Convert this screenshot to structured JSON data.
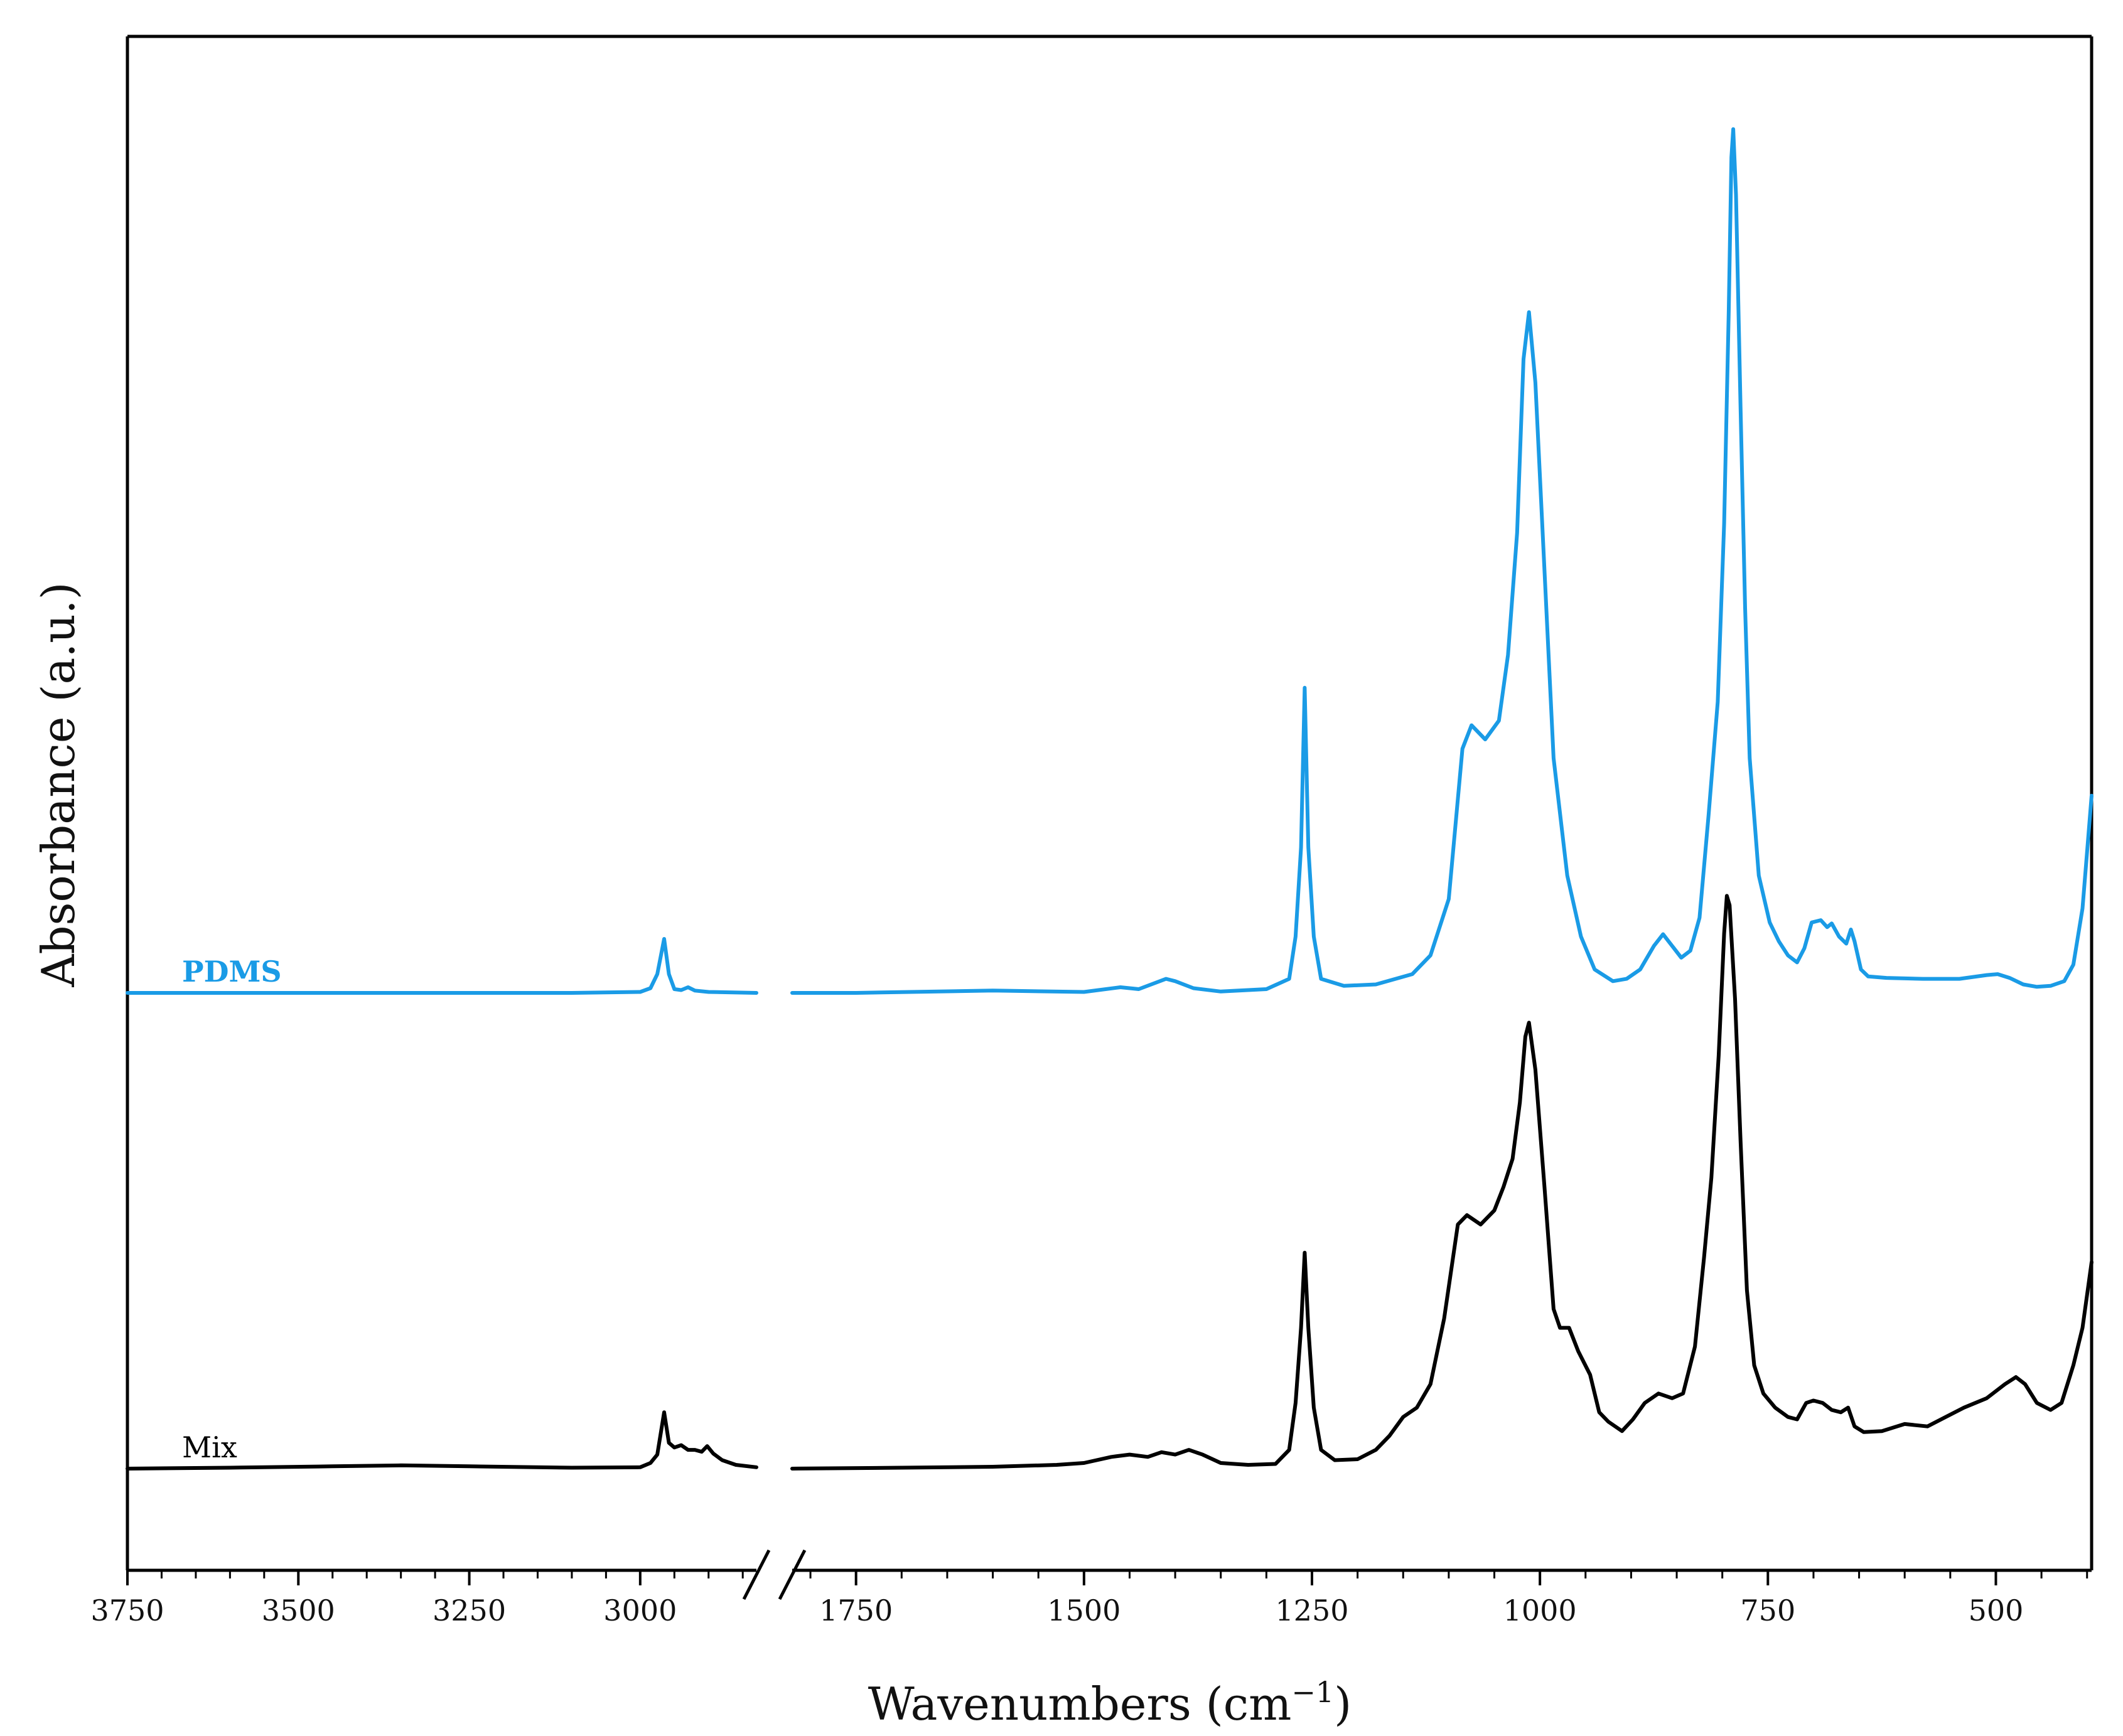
{
  "chart_data": {
    "type": "line",
    "xlabel": "Wavenumbers (cm",
    "xlabel_sup": "−1",
    "xlabel_close": ")",
    "ylabel": "Absorbance (a.u.)",
    "x_reversed": true,
    "x_axis_break": [
      1820,
      2830
    ],
    "x_segments": [
      [
        3750,
        2830
      ],
      [
        1820,
        395
      ]
    ],
    "yticks_shown": false,
    "grid": false,
    "legend": "none",
    "xticks_left": [
      3750,
      3500,
      3250,
      3000
    ],
    "xticks_right": [
      1750,
      1500,
      1250,
      1000,
      750,
      500
    ],
    "series": [
      {
        "name": "PDMS",
        "color": "#1a9be6",
        "points": [
          [
            3750,
            0.0
          ],
          [
            3500,
            0.0
          ],
          [
            3250,
            0.0
          ],
          [
            3100,
            0.0
          ],
          [
            3000,
            0.002
          ],
          [
            2985,
            0.01
          ],
          [
            2975,
            0.04
          ],
          [
            2965,
            0.115
          ],
          [
            2958,
            0.04
          ],
          [
            2950,
            0.008
          ],
          [
            2940,
            0.006
          ],
          [
            2930,
            0.012
          ],
          [
            2920,
            0.005
          ],
          [
            2900,
            0.002
          ],
          [
            2830,
            0.0
          ],
          [
            1820,
            0.0
          ],
          [
            1750,
            0.0
          ],
          [
            1600,
            0.005
          ],
          [
            1500,
            0.002
          ],
          [
            1460,
            0.012
          ],
          [
            1440,
            0.008
          ],
          [
            1410,
            0.03
          ],
          [
            1400,
            0.025
          ],
          [
            1380,
            0.01
          ],
          [
            1350,
            0.003
          ],
          [
            1300,
            0.008
          ],
          [
            1275,
            0.03
          ],
          [
            1268,
            0.12
          ],
          [
            1262,
            0.31
          ],
          [
            1258,
            0.65
          ],
          [
            1254,
            0.31
          ],
          [
            1248,
            0.12
          ],
          [
            1240,
            0.03
          ],
          [
            1215,
            0.015
          ],
          [
            1180,
            0.018
          ],
          [
            1140,
            0.04
          ],
          [
            1120,
            0.08
          ],
          [
            1100,
            0.2
          ],
          [
            1085,
            0.52
          ],
          [
            1075,
            0.57
          ],
          [
            1060,
            0.54
          ],
          [
            1045,
            0.58
          ],
          [
            1035,
            0.72
          ],
          [
            1025,
            0.98
          ],
          [
            1018,
            1.35
          ],
          [
            1012,
            1.45
          ],
          [
            1005,
            1.3
          ],
          [
            995,
            0.9
          ],
          [
            985,
            0.5
          ],
          [
            970,
            0.25
          ],
          [
            955,
            0.12
          ],
          [
            940,
            0.05
          ],
          [
            920,
            0.025
          ],
          [
            905,
            0.03
          ],
          [
            890,
            0.05
          ],
          [
            875,
            0.1
          ],
          [
            865,
            0.125
          ],
          [
            855,
            0.1
          ],
          [
            845,
            0.075
          ],
          [
            835,
            0.09
          ],
          [
            825,
            0.16
          ],
          [
            815,
            0.38
          ],
          [
            805,
            0.62
          ],
          [
            798,
            1.0
          ],
          [
            793,
            1.45
          ],
          [
            790,
            1.78
          ],
          [
            788,
            1.84
          ],
          [
            785,
            1.7
          ],
          [
            780,
            1.25
          ],
          [
            775,
            0.82
          ],
          [
            770,
            0.5
          ],
          [
            760,
            0.25
          ],
          [
            748,
            0.15
          ],
          [
            738,
            0.11
          ],
          [
            728,
            0.08
          ],
          [
            718,
            0.065
          ],
          [
            710,
            0.095
          ],
          [
            702,
            0.15
          ],
          [
            692,
            0.155
          ],
          [
            685,
            0.14
          ],
          [
            680,
            0.148
          ],
          [
            672,
            0.12
          ],
          [
            664,
            0.105
          ],
          [
            659,
            0.135
          ],
          [
            655,
            0.11
          ],
          [
            648,
            0.05
          ],
          [
            640,
            0.035
          ],
          [
            620,
            0.032
          ],
          [
            580,
            0.03
          ],
          [
            540,
            0.03
          ],
          [
            510,
            0.038
          ],
          [
            498,
            0.04
          ],
          [
            485,
            0.032
          ],
          [
            470,
            0.018
          ],
          [
            455,
            0.013
          ],
          [
            440,
            0.015
          ],
          [
            425,
            0.025
          ],
          [
            415,
            0.06
          ],
          [
            405,
            0.18
          ],
          [
            395,
            0.42
          ]
        ]
      },
      {
        "name": "Mix",
        "color": "#000000",
        "points": [
          [
            3750,
            0.0
          ],
          [
            3600,
            0.002
          ],
          [
            3450,
            0.005
          ],
          [
            3350,
            0.007
          ],
          [
            3250,
            0.005
          ],
          [
            3100,
            0.002
          ],
          [
            3000,
            0.003
          ],
          [
            2985,
            0.012
          ],
          [
            2975,
            0.03
          ],
          [
            2965,
            0.12
          ],
          [
            2958,
            0.055
          ],
          [
            2950,
            0.045
          ],
          [
            2940,
            0.05
          ],
          [
            2930,
            0.04
          ],
          [
            2920,
            0.04
          ],
          [
            2910,
            0.036
          ],
          [
            2902,
            0.048
          ],
          [
            2893,
            0.032
          ],
          [
            2880,
            0.018
          ],
          [
            2860,
            0.008
          ],
          [
            2830,
            0.003
          ],
          [
            1820,
            0.0
          ],
          [
            1700,
            0.002
          ],
          [
            1600,
            0.004
          ],
          [
            1530,
            0.008
          ],
          [
            1500,
            0.012
          ],
          [
            1470,
            0.025
          ],
          [
            1450,
            0.03
          ],
          [
            1430,
            0.025
          ],
          [
            1415,
            0.035
          ],
          [
            1400,
            0.03
          ],
          [
            1385,
            0.04
          ],
          [
            1370,
            0.03
          ],
          [
            1350,
            0.012
          ],
          [
            1320,
            0.008
          ],
          [
            1290,
            0.01
          ],
          [
            1275,
            0.04
          ],
          [
            1268,
            0.14
          ],
          [
            1262,
            0.3
          ],
          [
            1258,
            0.46
          ],
          [
            1254,
            0.3
          ],
          [
            1248,
            0.13
          ],
          [
            1240,
            0.04
          ],
          [
            1225,
            0.018
          ],
          [
            1200,
            0.02
          ],
          [
            1180,
            0.04
          ],
          [
            1165,
            0.07
          ],
          [
            1150,
            0.11
          ],
          [
            1135,
            0.13
          ],
          [
            1120,
            0.18
          ],
          [
            1105,
            0.32
          ],
          [
            1090,
            0.52
          ],
          [
            1080,
            0.54
          ],
          [
            1065,
            0.52
          ],
          [
            1050,
            0.55
          ],
          [
            1040,
            0.6
          ],
          [
            1030,
            0.66
          ],
          [
            1022,
            0.78
          ],
          [
            1016,
            0.92
          ],
          [
            1012,
            0.95
          ],
          [
            1005,
            0.85
          ],
          [
            995,
            0.6
          ],
          [
            985,
            0.34
          ],
          [
            978,
            0.3
          ],
          [
            968,
            0.3
          ],
          [
            958,
            0.25
          ],
          [
            945,
            0.2
          ],
          [
            935,
            0.12
          ],
          [
            925,
            0.1
          ],
          [
            910,
            0.08
          ],
          [
            898,
            0.105
          ],
          [
            885,
            0.14
          ],
          [
            870,
            0.16
          ],
          [
            855,
            0.15
          ],
          [
            843,
            0.16
          ],
          [
            830,
            0.26
          ],
          [
            820,
            0.45
          ],
          [
            812,
            0.62
          ],
          [
            804,
            0.88
          ],
          [
            798,
            1.14
          ],
          [
            795,
            1.22
          ],
          [
            792,
            1.2
          ],
          [
            786,
            1.0
          ],
          [
            780,
            0.7
          ],
          [
            773,
            0.38
          ],
          [
            765,
            0.22
          ],
          [
            755,
            0.16
          ],
          [
            742,
            0.13
          ],
          [
            728,
            0.11
          ],
          [
            718,
            0.105
          ],
          [
            708,
            0.14
          ],
          [
            700,
            0.145
          ],
          [
            690,
            0.14
          ],
          [
            680,
            0.125
          ],
          [
            670,
            0.12
          ],
          [
            662,
            0.13
          ],
          [
            655,
            0.09
          ],
          [
            645,
            0.078
          ],
          [
            625,
            0.08
          ],
          [
            600,
            0.095
          ],
          [
            575,
            0.09
          ],
          [
            555,
            0.11
          ],
          [
            535,
            0.13
          ],
          [
            510,
            0.15
          ],
          [
            490,
            0.18
          ],
          [
            478,
            0.195
          ],
          [
            468,
            0.18
          ],
          [
            455,
            0.14
          ],
          [
            440,
            0.125
          ],
          [
            428,
            0.14
          ],
          [
            415,
            0.22
          ],
          [
            405,
            0.3
          ],
          [
            395,
            0.44
          ]
        ]
      }
    ]
  }
}
